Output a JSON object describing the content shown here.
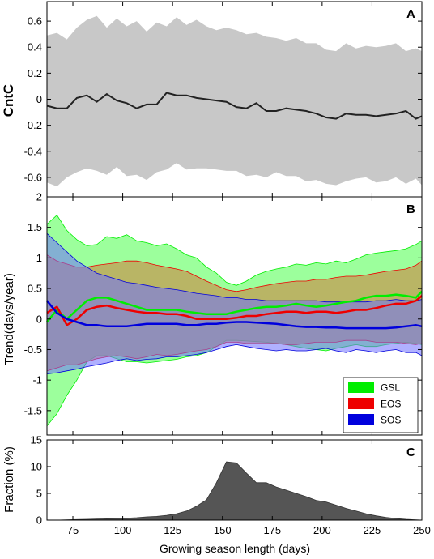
{
  "chart_data": [
    {
      "panel": "A",
      "type": "area",
      "ylabel": "CntC",
      "xlim": [
        62,
        250
      ],
      "ylim": [
        -0.75,
        0.75
      ],
      "x_ticks": [
        75,
        100,
        125,
        150,
        175,
        200,
        225,
        250
      ],
      "y_ticks": [
        -0.6,
        -0.4,
        -0.2,
        0,
        0.2,
        0.4,
        0.6
      ],
      "y_tick_labels": [
        "-0.6",
        "-0.4",
        "-0.2",
        "0",
        "0.2",
        "0.4",
        "0.6"
      ],
      "x": [
        62,
        67,
        72,
        77,
        82,
        87,
        92,
        97,
        102,
        107,
        112,
        117,
        122,
        127,
        132,
        137,
        142,
        147,
        152,
        157,
        162,
        167,
        172,
        177,
        182,
        187,
        192,
        197,
        202,
        207,
        212,
        217,
        222,
        227,
        232,
        237,
        242,
        247,
        250
      ],
      "band_fill": "#c8c8c8",
      "line_color": "#222222",
      "series": [
        {
          "role": "upper",
          "values": [
            0.49,
            0.51,
            0.46,
            0.55,
            0.61,
            0.64,
            0.55,
            0.62,
            0.56,
            0.6,
            0.52,
            0.59,
            0.56,
            0.63,
            0.57,
            0.61,
            0.56,
            0.53,
            0.55,
            0.53,
            0.5,
            0.51,
            0.48,
            0.47,
            0.45,
            0.47,
            0.43,
            0.43,
            0.38,
            0.37,
            0.43,
            0.39,
            0.41,
            0.4,
            0.41,
            0.43,
            0.37,
            0.39,
            0.37
          ]
        },
        {
          "role": "mean",
          "values": [
            -0.05,
            -0.07,
            -0.07,
            0.01,
            0.03,
            -0.02,
            0.04,
            -0.01,
            -0.03,
            -0.07,
            -0.04,
            -0.04,
            0.05,
            0.03,
            0.03,
            0.01,
            0.0,
            -0.01,
            -0.02,
            -0.06,
            -0.07,
            -0.03,
            -0.09,
            -0.09,
            -0.07,
            -0.08,
            -0.09,
            -0.11,
            -0.14,
            -0.15,
            -0.11,
            -0.12,
            -0.12,
            -0.13,
            -0.12,
            -0.11,
            -0.09,
            -0.15,
            -0.13
          ]
        },
        {
          "role": "lower",
          "values": [
            -0.64,
            -0.67,
            -0.6,
            -0.56,
            -0.53,
            -0.55,
            -0.58,
            -0.52,
            -0.59,
            -0.58,
            -0.62,
            -0.56,
            -0.54,
            -0.49,
            -0.54,
            -0.53,
            -0.53,
            -0.54,
            -0.55,
            -0.55,
            -0.59,
            -0.58,
            -0.6,
            -0.56,
            -0.59,
            -0.59,
            -0.63,
            -0.62,
            -0.65,
            -0.66,
            -0.63,
            -0.61,
            -0.6,
            -0.64,
            -0.63,
            -0.6,
            -0.65,
            -0.61,
            -0.66
          ]
        }
      ]
    },
    {
      "panel": "B",
      "type": "area",
      "ylabel": "Trend(days/year)",
      "xlim": [
        62,
        250
      ],
      "ylim": [
        -1.9,
        2.0
      ],
      "x_ticks": [
        75,
        100,
        125,
        150,
        175,
        200,
        225,
        250
      ],
      "y_ticks": [
        -1.5,
        -1,
        -0.5,
        0,
        0.5,
        1,
        1.5,
        2
      ],
      "y_tick_labels": [
        "-1.5",
        "-1",
        "-0.5",
        "0",
        "0.5",
        "1",
        "1.5",
        "2"
      ],
      "legend": {
        "placement": "bottom-right",
        "entries": [
          "GSL",
          "EOS",
          "SOS"
        ]
      },
      "x": [
        62,
        67,
        72,
        77,
        82,
        87,
        92,
        97,
        102,
        107,
        112,
        117,
        122,
        127,
        132,
        137,
        142,
        147,
        152,
        157,
        162,
        167,
        172,
        177,
        182,
        187,
        192,
        197,
        202,
        207,
        212,
        217,
        222,
        227,
        232,
        237,
        242,
        247,
        250
      ],
      "series": [
        {
          "name": "GSL",
          "color": "#00ee00",
          "fill": "#80ff80",
          "fill_opacity": 0.78,
          "upper": [
            1.55,
            1.7,
            1.45,
            1.3,
            1.2,
            1.22,
            1.35,
            1.32,
            1.38,
            1.28,
            1.25,
            1.2,
            1.23,
            1.15,
            1.05,
            1.0,
            0.85,
            0.75,
            0.6,
            0.55,
            0.62,
            0.72,
            0.78,
            0.82,
            0.85,
            0.9,
            0.88,
            0.92,
            0.9,
            0.95,
            0.92,
            0.98,
            1.05,
            1.08,
            1.1,
            1.12,
            1.15,
            1.22,
            1.28
          ],
          "mean": [
            -0.05,
            0.15,
            0.0,
            0.15,
            0.3,
            0.35,
            0.35,
            0.3,
            0.25,
            0.2,
            0.15,
            0.15,
            0.15,
            0.15,
            0.12,
            0.1,
            0.08,
            0.08,
            0.08,
            0.12,
            0.15,
            0.18,
            0.2,
            0.2,
            0.22,
            0.25,
            0.22,
            0.2,
            0.22,
            0.25,
            0.28,
            0.3,
            0.35,
            0.38,
            0.38,
            0.4,
            0.38,
            0.35,
            0.45
          ],
          "lower": [
            -1.75,
            -1.55,
            -1.25,
            -1.0,
            -0.7,
            -0.6,
            -0.6,
            -0.65,
            -0.7,
            -0.7,
            -0.72,
            -0.7,
            -0.68,
            -0.66,
            -0.62,
            -0.6,
            -0.55,
            -0.45,
            -0.35,
            -0.35,
            -0.36,
            -0.37,
            -0.38,
            -0.4,
            -0.42,
            -0.45,
            -0.48,
            -0.5,
            -0.52,
            -0.48,
            -0.45,
            -0.42,
            -0.45,
            -0.45,
            -0.42,
            -0.4,
            -0.38,
            -0.4,
            -0.42
          ]
        },
        {
          "name": "EOS",
          "color": "#ee0000",
          "fill": "#cc8844",
          "fill_opacity": 0.62,
          "upper": [
            1.05,
            0.95,
            0.9,
            0.85,
            0.85,
            0.88,
            0.9,
            0.92,
            0.95,
            0.95,
            0.92,
            0.88,
            0.85,
            0.82,
            0.78,
            0.7,
            0.62,
            0.55,
            0.48,
            0.45,
            0.48,
            0.52,
            0.55,
            0.58,
            0.6,
            0.62,
            0.62,
            0.65,
            0.65,
            0.68,
            0.7,
            0.7,
            0.72,
            0.75,
            0.78,
            0.8,
            0.82,
            0.88,
            0.95
          ],
          "mean": [
            0.1,
            0.2,
            -0.1,
            0.0,
            0.15,
            0.2,
            0.22,
            0.18,
            0.15,
            0.12,
            0.1,
            0.1,
            0.08,
            0.08,
            0.05,
            0.0,
            0.0,
            0.0,
            0.0,
            0.02,
            0.05,
            0.05,
            0.08,
            0.1,
            0.12,
            0.12,
            0.1,
            0.12,
            0.12,
            0.1,
            0.12,
            0.15,
            0.15,
            0.18,
            0.22,
            0.25,
            0.25,
            0.3,
            0.38
          ],
          "lower": [
            -0.85,
            -0.8,
            -0.75,
            -0.75,
            -0.7,
            -0.65,
            -0.62,
            -0.6,
            -0.62,
            -0.65,
            -0.62,
            -0.58,
            -0.6,
            -0.58,
            -0.55,
            -0.52,
            -0.5,
            -0.45,
            -0.38,
            -0.38,
            -0.4,
            -0.4,
            -0.4,
            -0.4,
            -0.42,
            -0.42,
            -0.4,
            -0.38,
            -0.38,
            -0.38,
            -0.35,
            -0.35,
            -0.35,
            -0.38,
            -0.38,
            -0.38,
            -0.4,
            -0.42,
            -0.4
          ]
        },
        {
          "name": "SOS",
          "color": "#0000dd",
          "fill": "#7070ff",
          "fill_opacity": 0.55,
          "upper": [
            1.4,
            1.25,
            1.1,
            0.95,
            0.85,
            0.75,
            0.7,
            0.65,
            0.6,
            0.58,
            0.55,
            0.52,
            0.5,
            0.48,
            0.45,
            0.42,
            0.4,
            0.38,
            0.35,
            0.35,
            0.32,
            0.32,
            0.3,
            0.3,
            0.3,
            0.3,
            0.3,
            0.3,
            0.28,
            0.28,
            0.28,
            0.28,
            0.28,
            0.3,
            0.3,
            0.32,
            0.3,
            0.3,
            0.32
          ],
          "mean": [
            0.3,
            0.1,
            0.0,
            -0.05,
            -0.1,
            -0.1,
            -0.12,
            -0.12,
            -0.12,
            -0.1,
            -0.08,
            -0.08,
            -0.08,
            -0.08,
            -0.1,
            -0.1,
            -0.08,
            -0.08,
            -0.06,
            -0.05,
            -0.05,
            -0.06,
            -0.07,
            -0.08,
            -0.1,
            -0.12,
            -0.13,
            -0.13,
            -0.14,
            -0.14,
            -0.15,
            -0.15,
            -0.15,
            -0.15,
            -0.15,
            -0.14,
            -0.12,
            -0.1,
            -0.12
          ],
          "lower": [
            -0.9,
            -0.88,
            -0.85,
            -0.82,
            -0.78,
            -0.75,
            -0.72,
            -0.68,
            -0.65,
            -0.68,
            -0.66,
            -0.65,
            -0.62,
            -0.62,
            -0.6,
            -0.58,
            -0.55,
            -0.5,
            -0.45,
            -0.42,
            -0.45,
            -0.48,
            -0.5,
            -0.52,
            -0.5,
            -0.52,
            -0.52,
            -0.5,
            -0.48,
            -0.52,
            -0.55,
            -0.5,
            -0.52,
            -0.55,
            -0.52,
            -0.5,
            -0.55,
            -0.55,
            -0.6
          ]
        }
      ]
    },
    {
      "panel": "C",
      "type": "area",
      "ylabel": "Fraction (%)",
      "xlabel": "Growing season length (days)",
      "xlim": [
        62,
        250
      ],
      "ylim": [
        0,
        15
      ],
      "x_ticks": [
        75,
        100,
        125,
        150,
        175,
        200,
        225,
        250
      ],
      "x_tick_labels": [
        "75",
        "100",
        "125",
        "150",
        "175",
        "200",
        "225",
        "250"
      ],
      "y_ticks": [
        0,
        5,
        10,
        15
      ],
      "y_tick_labels": [
        "0",
        "5",
        "10",
        "15"
      ],
      "fill": "#555555",
      "x": [
        62,
        67,
        72,
        77,
        82,
        87,
        92,
        97,
        102,
        107,
        112,
        117,
        122,
        127,
        132,
        137,
        142,
        147,
        152,
        157,
        162,
        167,
        172,
        177,
        182,
        187,
        192,
        197,
        202,
        207,
        212,
        217,
        222,
        227,
        232,
        237,
        242,
        247,
        250
      ],
      "values": [
        0.0,
        0.0,
        0.05,
        0.1,
        0.15,
        0.2,
        0.25,
        0.3,
        0.35,
        0.45,
        0.6,
        0.7,
        0.9,
        1.2,
        1.7,
        2.6,
        3.8,
        7.0,
        10.9,
        10.7,
        8.8,
        7.0,
        7.0,
        6.2,
        5.6,
        5.0,
        4.4,
        3.7,
        3.4,
        2.8,
        2.2,
        1.7,
        1.2,
        0.8,
        0.5,
        0.3,
        0.15,
        0.05,
        0.0
      ]
    }
  ]
}
